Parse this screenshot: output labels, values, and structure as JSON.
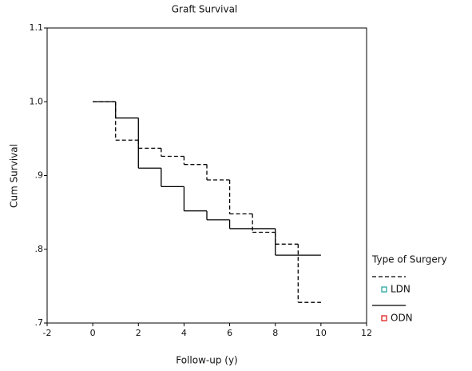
{
  "chart_data": {
    "type": "step",
    "title": "Graft Survival",
    "x_label": "Follow-up (y)",
    "y_label": "Cum Survival",
    "xlim": [
      -2,
      12
    ],
    "xticks": [
      -2,
      0,
      2,
      4,
      6,
      8,
      10,
      12
    ],
    "ylim": [
      0.7,
      1.1
    ],
    "yticks": [
      {
        "value": 0.7,
        "label": ".7"
      },
      {
        "value": 0.8,
        "label": ".8"
      },
      {
        "value": 0.9,
        "label": ".9"
      },
      {
        "value": 1.0,
        "label": "1.0"
      },
      1.1
    ],
    "legend_title": "Type of Surgery",
    "legend_position": "right",
    "series": [
      {
        "name": "LDN",
        "color": "#000000",
        "marker_color": "#2aa6a0",
        "dash": true,
        "x": [
          0,
          1,
          2,
          3,
          4,
          5,
          6,
          7,
          8,
          9,
          10
        ],
        "values": [
          1.0,
          0.948,
          0.937,
          0.926,
          0.915,
          0.894,
          0.848,
          0.823,
          0.807,
          0.728,
          0.728
        ]
      },
      {
        "name": "ODN",
        "color": "#000000",
        "marker_color": "#e02020",
        "dash": false,
        "x": [
          0,
          1,
          2,
          3,
          4,
          5,
          6,
          8,
          10
        ],
        "values": [
          1.0,
          0.978,
          0.91,
          0.885,
          0.852,
          0.84,
          0.828,
          0.792,
          0.792
        ]
      }
    ]
  }
}
